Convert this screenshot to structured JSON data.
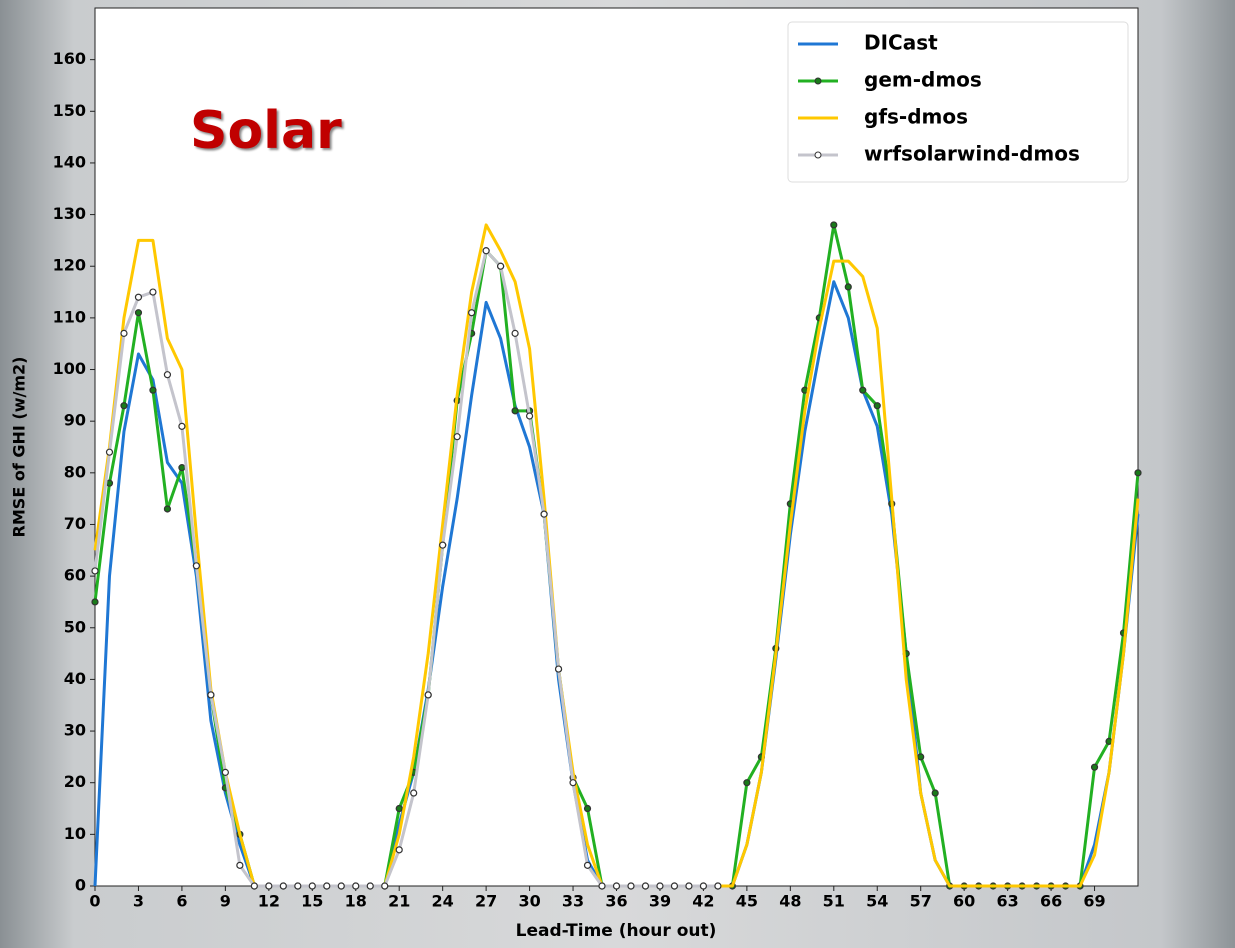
{
  "chart_data": {
    "type": "line",
    "annotation": "Solar",
    "x_label": "Lead-Time (hour out)",
    "y_label": "RMSE of GHI (w/m2)",
    "x": [
      0,
      1,
      2,
      3,
      4,
      5,
      6,
      7,
      8,
      9,
      10,
      11,
      12,
      13,
      14,
      15,
      16,
      17,
      18,
      19,
      20,
      21,
      22,
      23,
      24,
      25,
      26,
      27,
      28,
      29,
      30,
      31,
      32,
      33,
      34,
      35,
      36,
      37,
      38,
      39,
      40,
      41,
      42,
      43,
      44,
      45,
      46,
      47,
      48,
      49,
      50,
      51,
      52,
      53,
      54,
      55,
      56,
      57,
      58,
      59,
      60,
      61,
      62,
      63,
      64,
      65,
      66,
      67,
      68,
      69,
      70,
      71,
      72
    ],
    "xlim": [
      0,
      72
    ],
    "xticks": [
      0,
      3,
      6,
      9,
      12,
      15,
      18,
      21,
      24,
      27,
      30,
      33,
      36,
      39,
      42,
      45,
      48,
      51,
      54,
      57,
      60,
      63,
      66,
      69
    ],
    "ylim": [
      0,
      170
    ],
    "yticks": [
      0,
      10,
      20,
      30,
      40,
      50,
      60,
      70,
      80,
      90,
      100,
      110,
      120,
      130,
      140,
      150,
      160
    ],
    "legend": "upper right",
    "series": [
      {
        "name": "DICast",
        "color": "#1f77d4",
        "marker": false,
        "values": [
          0,
          60,
          88,
          103,
          98,
          82,
          78,
          60,
          32,
          18,
          8,
          0,
          0,
          0,
          0,
          0,
          0,
          0,
          0,
          0,
          0,
          12,
          22,
          38,
          58,
          75,
          95,
          113,
          106,
          93,
          85,
          72,
          40,
          20,
          5,
          0,
          0,
          0,
          0,
          0,
          0,
          0,
          0,
          0,
          0,
          8,
          22,
          44,
          68,
          88,
          103,
          117,
          110,
          96,
          89,
          72,
          45,
          18,
          5,
          0,
          0,
          0,
          0,
          0,
          0,
          0,
          0,
          0,
          0,
          8,
          22,
          45,
          72
        ]
      },
      {
        "name": "gem-dmos",
        "color": "#22b022",
        "marker": true,
        "values": [
          55,
          78,
          93,
          111,
          96,
          73,
          81,
          62,
          37,
          19,
          10,
          0,
          0,
          0,
          0,
          0,
          0,
          0,
          0,
          0,
          0,
          15,
          22,
          37,
          66,
          94,
          107,
          123,
          120,
          92,
          92,
          72,
          42,
          21,
          15,
          0,
          0,
          0,
          0,
          0,
          0,
          0,
          0,
          0,
          0,
          20,
          25,
          46,
          74,
          96,
          110,
          128,
          116,
          96,
          93,
          74,
          45,
          25,
          18,
          0,
          0,
          0,
          0,
          0,
          0,
          0,
          0,
          0,
          0,
          23,
          28,
          49,
          80
        ]
      },
      {
        "name": "gfs-dmos",
        "color": "#ffc800",
        "marker": false,
        "values": [
          65,
          85,
          110,
          125,
          125,
          106,
          100,
          68,
          38,
          22,
          10,
          0,
          0,
          0,
          0,
          0,
          0,
          0,
          0,
          0,
          0,
          10,
          25,
          45,
          70,
          95,
          115,
          128,
          123,
          117,
          104,
          75,
          42,
          22,
          8,
          0,
          0,
          0,
          0,
          0,
          0,
          0,
          0,
          0,
          0,
          8,
          22,
          45,
          70,
          92,
          108,
          121,
          121,
          118,
          108,
          75,
          40,
          18,
          5,
          0,
          0,
          0,
          0,
          0,
          0,
          0,
          0,
          0,
          0,
          6,
          22,
          45,
          75
        ]
      },
      {
        "name": "wrfsolarwind-dmos",
        "color": "#c4c4cc",
        "marker": true,
        "values": [
          61,
          84,
          107,
          114,
          115,
          99,
          89,
          62,
          37,
          22,
          4,
          0,
          0,
          0,
          0,
          0,
          0,
          0,
          0,
          0,
          0,
          7,
          18,
          37,
          66,
          87,
          111,
          123,
          120,
          107,
          91,
          72,
          42,
          20,
          4,
          0,
          0,
          0,
          0,
          0,
          0,
          0,
          0,
          0,
          null,
          null,
          null,
          null,
          null,
          null,
          null,
          null,
          null,
          null,
          null,
          null,
          null,
          null,
          null,
          null,
          null,
          null,
          null,
          null,
          null,
          null,
          null,
          null,
          null,
          null,
          null,
          null,
          null
        ]
      }
    ]
  }
}
